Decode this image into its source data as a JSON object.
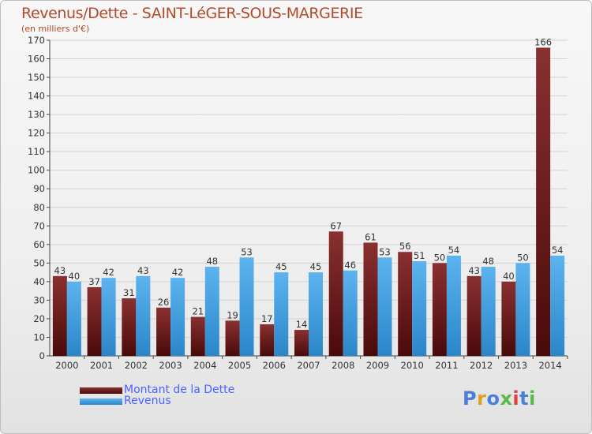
{
  "chart_data": {
    "type": "bar",
    "title": "Revenus/Dette - SAINT-LéGER-SOUS-MARGERIE",
    "subtitle": "(en milliers d'€)",
    "xlabel": "",
    "ylabel": "",
    "ylim": [
      0,
      170
    ],
    "yticks": [
      0,
      10,
      20,
      30,
      40,
      50,
      60,
      70,
      80,
      90,
      100,
      110,
      120,
      130,
      140,
      150,
      160,
      170
    ],
    "grid": true,
    "categories": [
      "2000",
      "2001",
      "2002",
      "2003",
      "2004",
      "2005",
      "2006",
      "2007",
      "2008",
      "2009",
      "2010",
      "2011",
      "2012",
      "2013",
      "2014"
    ],
    "series": [
      {
        "name": "Montant de la Dette",
        "color": "#7a1e1e",
        "values": [
          43,
          37,
          31,
          26,
          21,
          19,
          17,
          14,
          67,
          61,
          56,
          50,
          43,
          40,
          166
        ]
      },
      {
        "name": "Revenus",
        "color": "#3aa0e6",
        "values": [
          40,
          42,
          43,
          42,
          48,
          53,
          45,
          45,
          46,
          53,
          51,
          54,
          48,
          50,
          54
        ]
      }
    ],
    "legend": "bottom-left"
  },
  "logo": {
    "text": "Proxiti",
    "colors": [
      "#4b7fd8",
      "#e0a020",
      "#4b7fd8",
      "#58b84a",
      "#e04040",
      "#4b7fd8",
      "#58b84a"
    ]
  }
}
